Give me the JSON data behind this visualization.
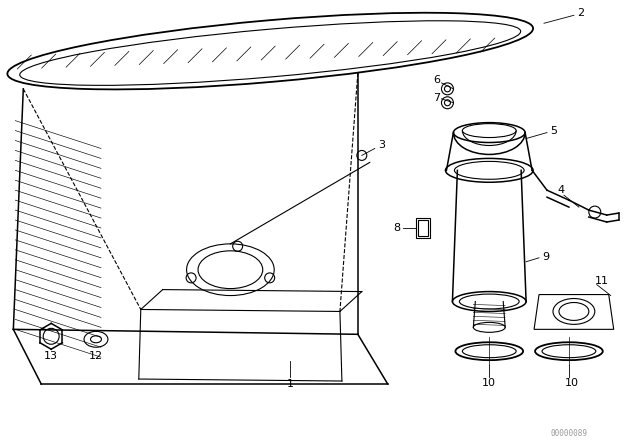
{
  "background_color": "#ffffff",
  "figure_width": 6.4,
  "figure_height": 4.48,
  "dpi": 100,
  "watermark": "00000089",
  "line_color": "#000000",
  "line_width": 0.8
}
